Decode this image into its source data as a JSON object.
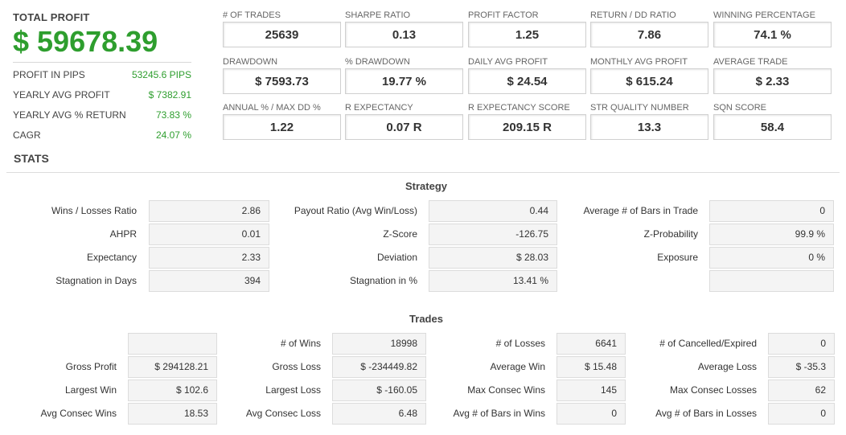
{
  "summary": {
    "total_profit_label": "TOTAL PROFIT",
    "total_profit_value": "$ 59678.39",
    "rows": [
      {
        "label": "PROFIT IN PIPS",
        "value": "53245.6 PIPS"
      },
      {
        "label": "YEARLY AVG PROFIT",
        "value": "$ 7382.91"
      },
      {
        "label": "YEARLY AVG % RETURN",
        "value": "73.83 %"
      },
      {
        "label": "CAGR",
        "value": "24.07 %"
      }
    ]
  },
  "metrics": [
    {
      "label": "# OF TRADES",
      "value": "25639"
    },
    {
      "label": "SHARPE RATIO",
      "value": "0.13"
    },
    {
      "label": "PROFIT FACTOR",
      "value": "1.25"
    },
    {
      "label": "RETURN / DD RATIO",
      "value": "7.86"
    },
    {
      "label": "WINNING PERCENTAGE",
      "value": "74.1 %"
    },
    {
      "label": "DRAWDOWN",
      "value": "$ 7593.73"
    },
    {
      "label": "% DRAWDOWN",
      "value": "19.77 %"
    },
    {
      "label": "DAILY AVG PROFIT",
      "value": "$ 24.54"
    },
    {
      "label": "MONTHLY AVG PROFIT",
      "value": "$ 615.24"
    },
    {
      "label": "AVERAGE TRADE",
      "value": "$ 2.33"
    },
    {
      "label": "ANNUAL % / MAX DD %",
      "value": "1.22"
    },
    {
      "label": "R EXPECTANCY",
      "value": "0.07 R"
    },
    {
      "label": "R EXPECTANCY SCORE",
      "value": "209.15 R"
    },
    {
      "label": "STR QUALITY NUMBER",
      "value": "13.3"
    },
    {
      "label": "SQN SCORE",
      "value": "58.4"
    }
  ],
  "stats": {
    "title": "STATS",
    "strategy": {
      "title": "Strategy",
      "rows": [
        [
          {
            "label": "Wins / Losses Ratio",
            "value": "2.86"
          },
          {
            "label": "Payout Ratio (Avg Win/Loss)",
            "value": "0.44"
          },
          {
            "label": "Average # of Bars in Trade",
            "value": "0"
          }
        ],
        [
          {
            "label": "AHPR",
            "value": "0.01"
          },
          {
            "label": "Z-Score",
            "value": "-126.75"
          },
          {
            "label": "Z-Probability",
            "value": "99.9 %"
          }
        ],
        [
          {
            "label": "Expectancy",
            "value": "2.33"
          },
          {
            "label": "Deviation",
            "value": "$ 28.03"
          },
          {
            "label": "Exposure",
            "value": "0 %"
          }
        ],
        [
          {
            "label": "Stagnation in Days",
            "value": "394"
          },
          {
            "label": "Stagnation in %",
            "value": "13.41 %"
          },
          {
            "label": "",
            "value": ""
          }
        ]
      ]
    },
    "trades": {
      "title": "Trades",
      "rows": [
        [
          {
            "label": "",
            "value": ""
          },
          {
            "label": "# of Wins",
            "value": "18998"
          },
          {
            "label": "# of Losses",
            "value": "6641"
          },
          {
            "label": "# of Cancelled/Expired",
            "value": "0"
          }
        ],
        [
          {
            "label": "Gross Profit",
            "value": "$ 294128.21"
          },
          {
            "label": "Gross Loss",
            "value": "$ -234449.82"
          },
          {
            "label": "Average Win",
            "value": "$ 15.48"
          },
          {
            "label": "Average Loss",
            "value": "$ -35.3"
          }
        ],
        [
          {
            "label": "Largest Win",
            "value": "$ 102.6"
          },
          {
            "label": "Largest Loss",
            "value": "$ -160.05"
          },
          {
            "label": "Max Consec Wins",
            "value": "145"
          },
          {
            "label": "Max Consec Losses",
            "value": "62"
          }
        ],
        [
          {
            "label": "Avg Consec Wins",
            "value": "18.53"
          },
          {
            "label": "Avg Consec Loss",
            "value": "6.48"
          },
          {
            "label": "Avg # of Bars in Wins",
            "value": "0"
          },
          {
            "label": "Avg # of Bars in Losses",
            "value": "0"
          }
        ]
      ]
    }
  }
}
